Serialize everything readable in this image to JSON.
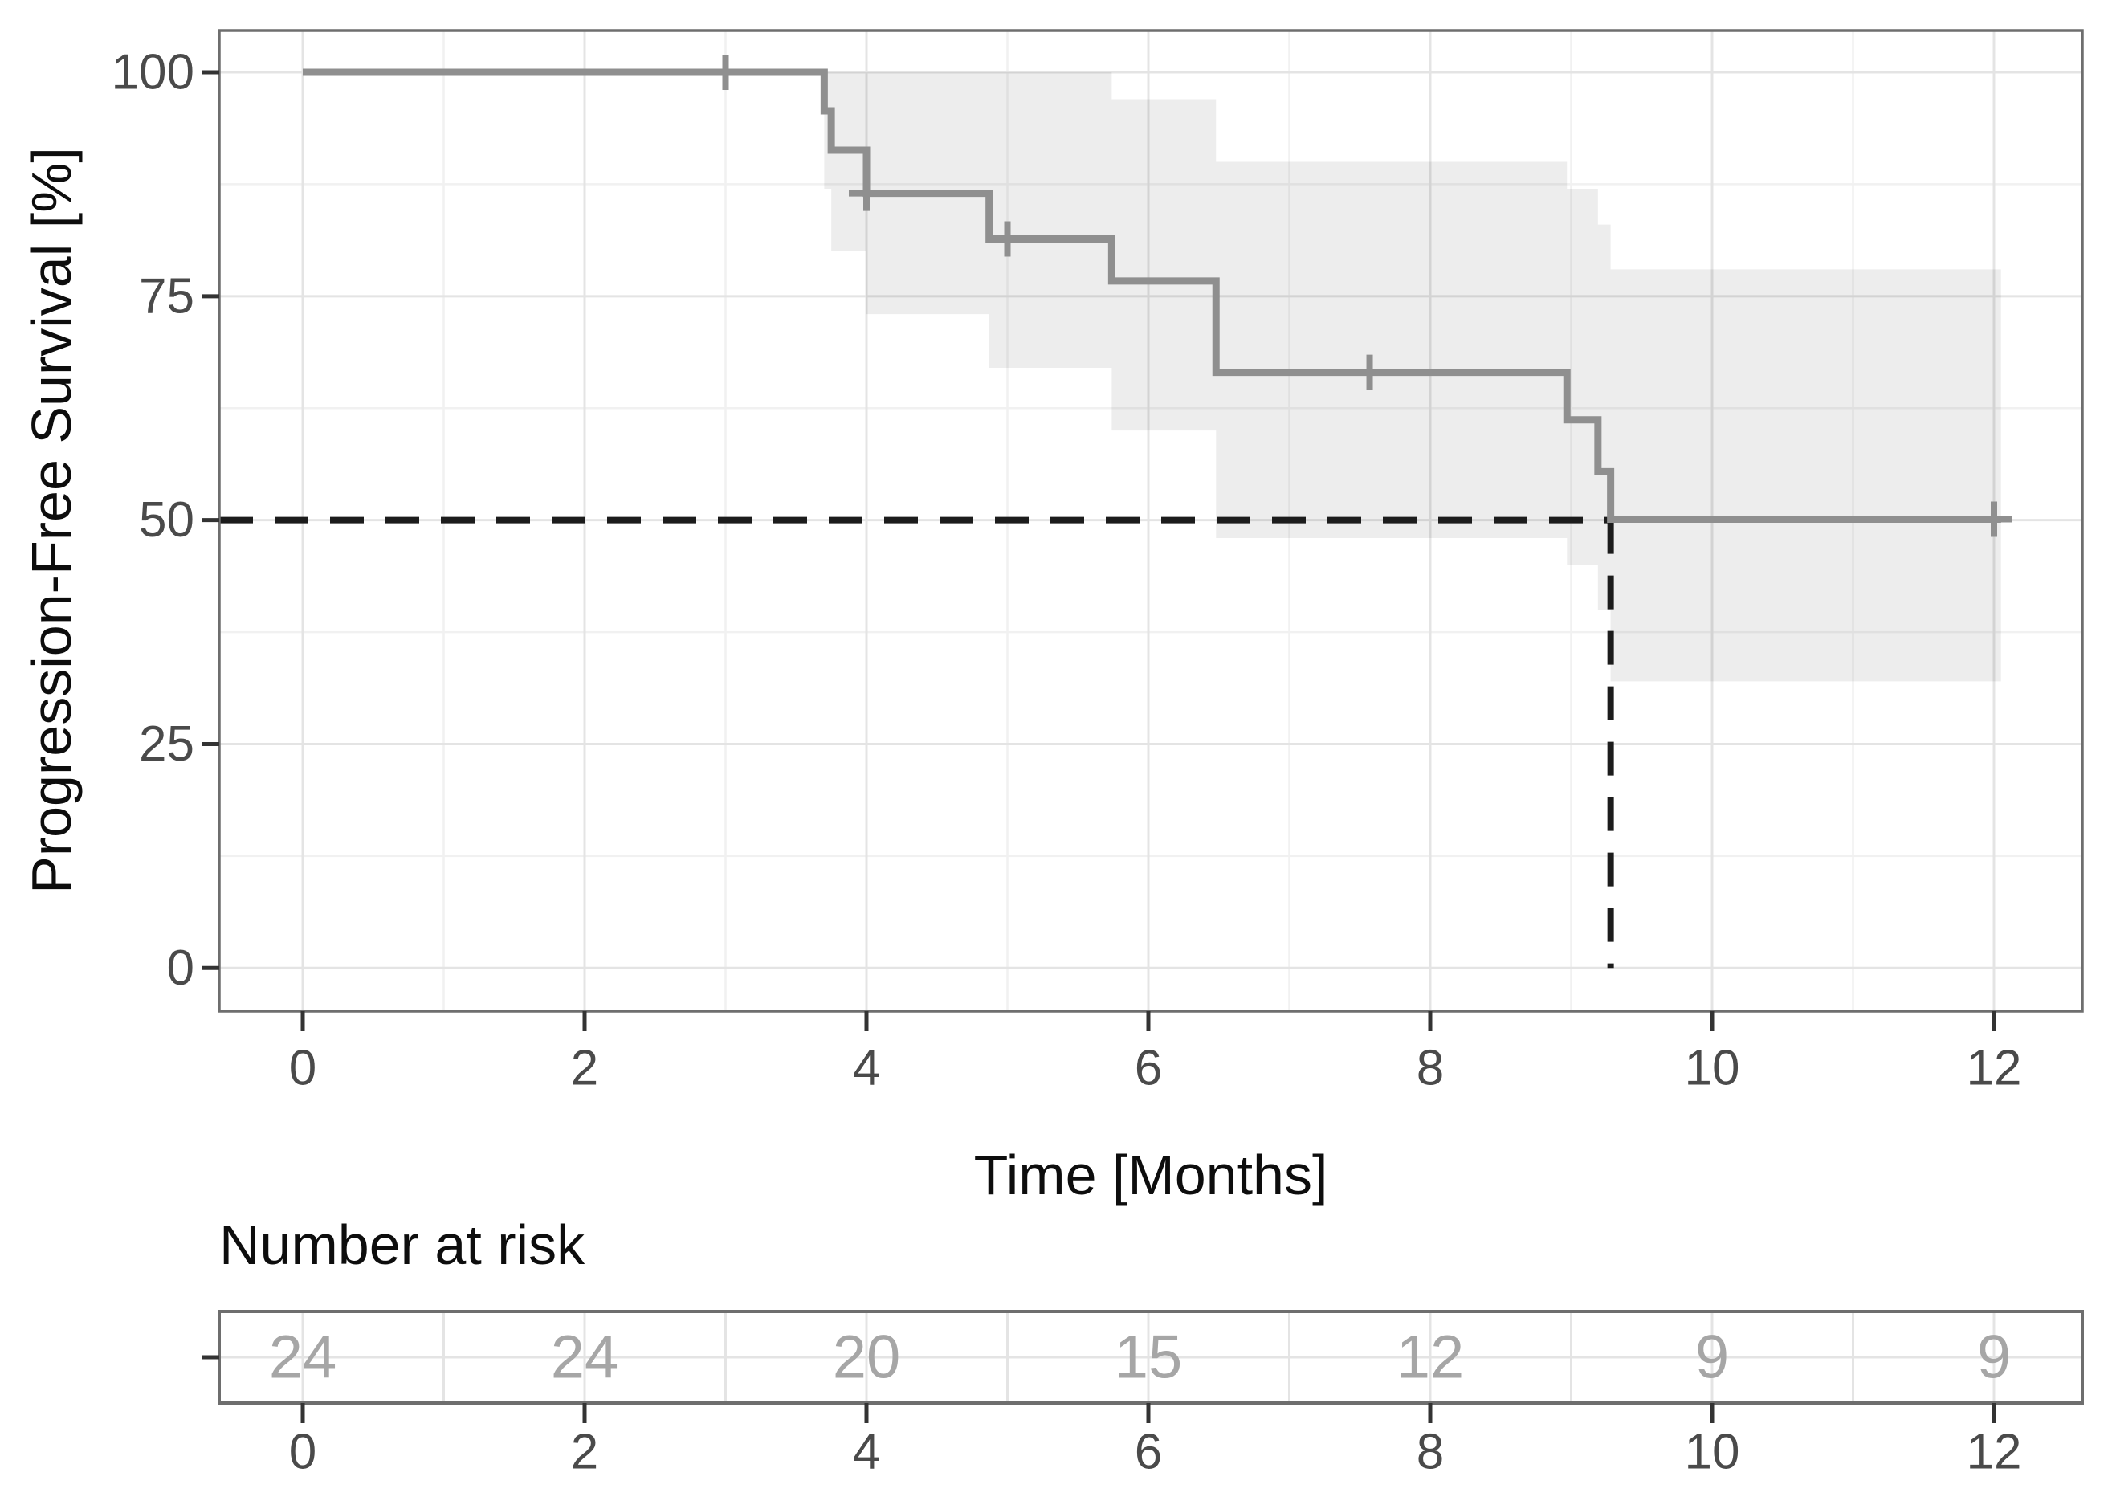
{
  "figure": {
    "ylabel": "Progression-Free Survival [%]",
    "xlabel": "Time [Months]",
    "risk_title": "Number at risk"
  },
  "colors": {
    "curve": "#8f8f8f",
    "censor": "#8f8f8f",
    "band": "#000000",
    "band_opacity": 0.07,
    "grid_major": "#e4e4e4",
    "grid_minor": "#f1f1f1",
    "panel_border": "#6e6e6e",
    "median_dash": "#1c1c1c",
    "tick_mark": "#333333",
    "tick_text": "#4a4a4a",
    "risk_number": "#a6a6a6"
  },
  "chart_data": {
    "type": "line",
    "variant": "kaplan-meier-step",
    "title": "",
    "xlabel": "Time [Months]",
    "ylabel": "Progression-Free Survival [%]",
    "xlim": [
      0,
      12
    ],
    "ylim": [
      0,
      100
    ],
    "xticks": [
      0,
      2,
      4,
      6,
      8,
      10,
      12
    ],
    "yticks": [
      0,
      25,
      50,
      75,
      100
    ],
    "grid": "major and minor, on",
    "legend": "none",
    "series": [
      {
        "name": "Progression-Free Survival",
        "color": "#8f8f8f",
        "steps": [
          [
            0,
            100
          ],
          [
            3.7,
            100
          ],
          [
            3.7,
            95.7
          ],
          [
            3.75,
            95.7
          ],
          [
            3.75,
            91.3
          ],
          [
            4.0,
            91.3
          ],
          [
            4.0,
            86.5
          ],
          [
            4.87,
            86.5
          ],
          [
            4.87,
            81.4
          ],
          [
            5.74,
            81.4
          ],
          [
            5.74,
            76.7
          ],
          [
            6.48,
            76.7
          ],
          [
            6.48,
            66.5
          ],
          [
            8.97,
            66.5
          ],
          [
            8.97,
            61.2
          ],
          [
            9.19,
            61.2
          ],
          [
            9.19,
            55.4
          ],
          [
            9.28,
            55.4
          ],
          [
            9.28,
            50.1
          ],
          [
            12.05,
            50.1
          ]
        ],
        "censor_marks": [
          [
            3.0,
            100
          ],
          [
            4.0,
            86.5
          ],
          [
            5.0,
            81.4
          ],
          [
            7.57,
            66.5
          ],
          [
            12.0,
            50.1
          ]
        ],
        "ci_band_segments": [
          [
            3.7,
            3.75,
            87,
            100
          ],
          [
            3.75,
            4.0,
            80,
            100
          ],
          [
            4.0,
            4.87,
            73,
            100
          ],
          [
            4.87,
            5.74,
            67,
            100
          ],
          [
            5.74,
            6.48,
            60,
            97
          ],
          [
            6.48,
            8.97,
            48,
            90
          ],
          [
            8.97,
            9.19,
            45,
            87
          ],
          [
            9.19,
            9.28,
            40,
            83
          ],
          [
            9.28,
            12.05,
            32,
            78
          ]
        ]
      }
    ],
    "median_annotation": {
      "time": 9.28,
      "survival": 50
    },
    "risk_table": {
      "title": "Number at risk",
      "times": [
        0,
        2,
        4,
        6,
        8,
        10,
        12
      ],
      "values": [
        24,
        24,
        20,
        15,
        12,
        9,
        9
      ]
    }
  }
}
